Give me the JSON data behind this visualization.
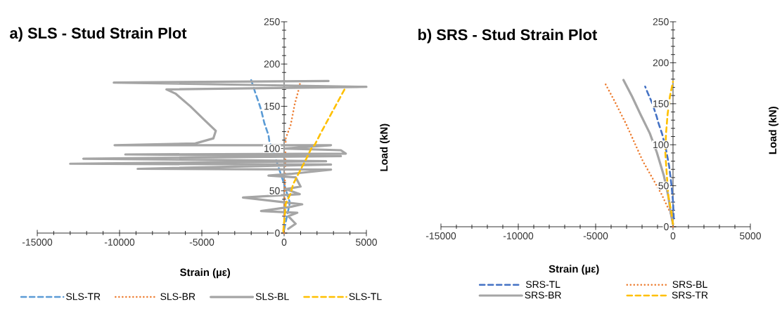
{
  "chart_data": [
    {
      "type": "line",
      "title": "a) SLS - Stud Strain Plot",
      "xlabel": "Strain (µε)",
      "ylabel": "Load (kN)",
      "xlim": [
        -15000,
        5000
      ],
      "ylim": [
        0,
        250
      ],
      "xticks": [
        -15000,
        -10000,
        -5000,
        0,
        5000
      ],
      "yticks": [
        0,
        50,
        100,
        150,
        200,
        250
      ],
      "legend": "bottom",
      "series": [
        {
          "name": "SLS-TR",
          "color": "#5b9bd5",
          "line_style": "dashed",
          "x": [
            0,
            350,
            -50,
            -650,
            -900,
            -950,
            -1200,
            -1400,
            -1500,
            -1750,
            -2000
          ],
          "values": [
            4,
            36,
            61,
            96,
            109,
            116,
            130,
            146,
            152,
            166,
            181
          ]
        },
        {
          "name": "SLS-BR",
          "color": "#ed7d31",
          "line_style": "dotted",
          "x": [
            0,
            0,
            50,
            100,
            400,
            650,
            850,
            1000
          ],
          "values": [
            0,
            11,
            61,
            112,
            128,
            153,
            167,
            180
          ]
        },
        {
          "name": "SLS-BL",
          "color": "#a5a5a5",
          "line_style": "solid",
          "x": [
            250,
            700,
            250,
            800,
            -1400,
            400,
            1100,
            -2500,
            950,
            100,
            1000,
            700,
            -950,
            400,
            2850,
            -8900,
            2850,
            -13000,
            2550,
            -12200,
            3450,
            -9650,
            3750,
            3450,
            0,
            2850,
            -10300,
            -5400,
            -4300,
            -4150,
            -4800,
            -5700,
            -6600,
            -7150,
            5000,
            -10350,
            2700
          ],
          "values": [
            5,
            11,
            20,
            24,
            26,
            31,
            34,
            42,
            46,
            52,
            55,
            66,
            68,
            70,
            75,
            76,
            81,
            82,
            85,
            88,
            91,
            93,
            94,
            98,
            100,
            104,
            104,
            106,
            112,
            121,
            133,
            150,
            165,
            170,
            173,
            178,
            180
          ]
        },
        {
          "name": "SLS-TL",
          "color": "#ffc000",
          "line_style": "dashed",
          "x": [
            -50,
            50,
            100,
            400,
            550,
            950,
            1350,
            1650,
            1850,
            2300,
            3000,
            3700
          ],
          "values": [
            2,
            23,
            35,
            47,
            58,
            73,
            88,
            100,
            104,
            121,
            146,
            171
          ]
        }
      ]
    },
    {
      "type": "line",
      "title": "b) SRS - Stud Strain Plot",
      "xlabel": "Strain (µε)",
      "ylabel": "Load (kN)",
      "xlim": [
        -15000,
        5000
      ],
      "ylim": [
        0,
        250
      ],
      "xticks": [
        -15000,
        -10000,
        -5000,
        0,
        5000
      ],
      "yticks": [
        0,
        50,
        100,
        150,
        200,
        250
      ],
      "legend": "bottom",
      "series": [
        {
          "name": "SRS-TL",
          "color": "#4472c4",
          "line_style": "dashed",
          "x": [
            50,
            0,
            -100,
            -250,
            -450,
            -700,
            -950,
            -1050,
            -1350,
            -1650,
            -1800
          ],
          "values": [
            10,
            31,
            51,
            74,
            94,
            113,
            127,
            134,
            151,
            164,
            171
          ]
        },
        {
          "name": "SRS-BL",
          "color": "#ed7d31",
          "line_style": "dotted",
          "x": [
            0,
            -150,
            -750,
            -1950,
            -3050,
            -3800,
            -4450
          ],
          "values": [
            0,
            16,
            40,
            80,
            126,
            154,
            177
          ]
        },
        {
          "name": "SRS-BR",
          "color": "#a5a5a5",
          "line_style": "solid",
          "x": [
            0,
            -150,
            -300,
            -600,
            -1050,
            -1500,
            -2100,
            -2650,
            -3200
          ],
          "values": [
            3,
            17,
            37,
            63,
            91,
            114,
            137,
            159,
            179
          ]
        },
        {
          "name": "SRS-TR",
          "color": "#ffc000",
          "line_style": "dashed",
          "x": [
            0,
            -100,
            -300,
            -400,
            -500,
            -450,
            -350,
            -200,
            0
          ],
          "values": [
            3,
            17,
            37,
            63,
            91,
            114,
            137,
            159,
            177
          ]
        }
      ]
    }
  ]
}
